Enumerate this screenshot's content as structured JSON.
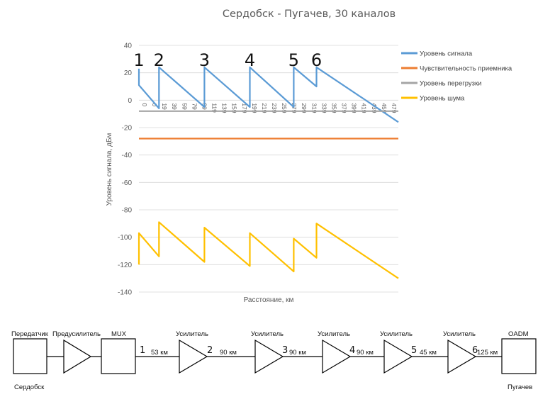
{
  "chart_data": {
    "type": "line",
    "title": "Сердобск - Пугачев, 30 каналов",
    "xlabel": "Расстояние, км",
    "ylabel": "Уровень сигнала, дБм",
    "ylim": [
      -140,
      40
    ],
    "yticks": [
      40,
      20,
      0,
      -20,
      -40,
      -60,
      -80,
      -100,
      -120,
      -140
    ],
    "xlim": [
      0,
      491
    ],
    "xtick_labels": [
      "0",
      "0",
      "19",
      "39",
      "59",
      "79",
      "99",
      "119",
      "139",
      "159",
      "179",
      "199",
      "219",
      "239",
      "259",
      "279",
      "299",
      "319",
      "339",
      "359",
      "379",
      "399",
      "419",
      "439",
      "459",
      "479"
    ],
    "grid": true,
    "legend_position": "right",
    "series": [
      {
        "name": "Уровень сигнала",
        "color": "#5b9bd5",
        "points": [
          [
            0,
            23
          ],
          [
            0,
            11
          ],
          [
            38,
            -6
          ],
          [
            38,
            24
          ],
          [
            124,
            -5
          ],
          [
            124,
            24
          ],
          [
            210,
            -5
          ],
          [
            210,
            24
          ],
          [
            293,
            -5
          ],
          [
            293,
            24
          ],
          [
            336,
            10
          ],
          [
            336,
            24
          ],
          [
            491,
            -16
          ]
        ]
      },
      {
        "name": "Чувствительность приемника",
        "color": "#ed7d31",
        "points": [
          [
            0,
            -28
          ],
          [
            491,
            -28
          ]
        ]
      },
      {
        "name": "Уровень перегрузки",
        "color": "#a5a5a5",
        "points": [
          [
            0,
            -8
          ],
          [
            491,
            -8
          ]
        ]
      },
      {
        "name": "Уровень шума",
        "color": "#ffc000",
        "points": [
          [
            0,
            -120
          ],
          [
            0,
            -97
          ],
          [
            38,
            -114
          ],
          [
            38,
            -89
          ],
          [
            124,
            -118
          ],
          [
            124,
            -93
          ],
          [
            210,
            -121
          ],
          [
            210,
            -97
          ],
          [
            293,
            -125
          ],
          [
            293,
            -101
          ],
          [
            336,
            -115
          ],
          [
            336,
            -90
          ],
          [
            491,
            -130
          ]
        ]
      }
    ],
    "markers": [
      "1",
      "2",
      "3",
      "4",
      "5",
      "6"
    ],
    "marker_x": [
      0,
      38,
      124,
      210,
      293,
      336
    ]
  },
  "diagram": {
    "transmitter_label": "Передатчик",
    "preamp_label": "Предусилитель",
    "mux_label": "MUX",
    "amplifier_label": "Усилитель",
    "oadm_label": "OADM",
    "start_city": "Сердобск",
    "end_city": "Пугачев",
    "stage_numbers": [
      "1",
      "2",
      "3",
      "4",
      "5",
      "6"
    ],
    "distances": [
      "53 км",
      "90 км",
      "90 км",
      "90 км",
      "45 км",
      "125 км"
    ]
  }
}
